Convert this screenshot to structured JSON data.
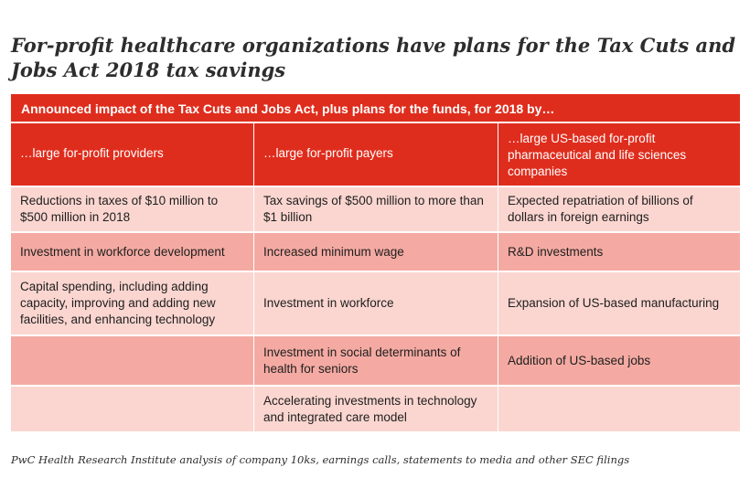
{
  "title": "For-profit healthcare organizations have plans for the Tax Cuts and Jobs Act 2018 tax savings",
  "banner": "Announced impact of the Tax Cuts and Jobs Act, plus plans for the funds, for 2018 by…",
  "columns": [
    "…large for-profit providers",
    "…large for-profit payers",
    "…large US-based for-profit pharmaceutical and life sciences companies"
  ],
  "rows": [
    [
      "Reductions in taxes of $10 million to $500 million in 2018",
      "Tax savings of $500 million to more than $1 billion",
      "Expected repatriation of billions of dollars in foreign earnings"
    ],
    [
      "Investment in workforce development",
      "Increased minimum wage",
      "R&D investments"
    ],
    [
      "Capital spending, including adding capacity, improving and adding new facilities, and enhancing technology",
      "Investment in workforce",
      "Expansion of US-based manufacturing"
    ],
    [
      "",
      "Investment in social determinants of health for seniors",
      "Addition of US-based jobs"
    ],
    [
      "",
      "Accelerating investments in technology and integrated care model",
      ""
    ]
  ],
  "source": "PwC Health Research Institute analysis of company 10ks, earnings calls, statements to media and other SEC filings",
  "colors": {
    "header_red": "#df2d1d",
    "row_light": "#fbd6d0",
    "row_mid": "#f4aaa2"
  }
}
